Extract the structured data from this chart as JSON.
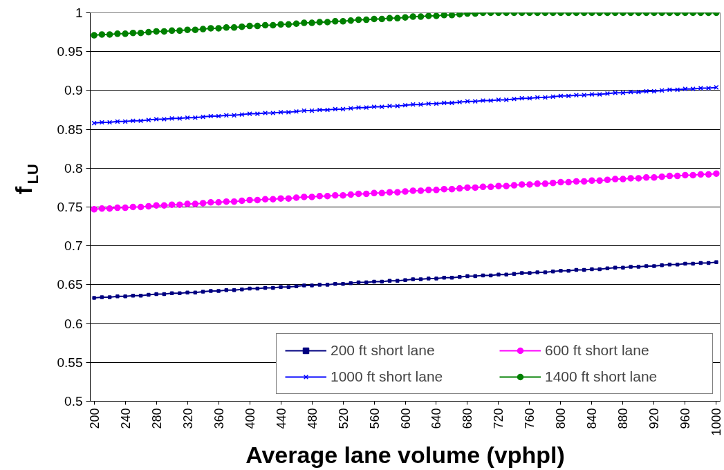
{
  "chart_data": {
    "type": "line",
    "xlabel": "Average lane volume (vphpl)",
    "ylabel": "f$_{LU}$",
    "categories": [
      "200",
      null,
      null,
      null,
      "240",
      null,
      null,
      null,
      "280",
      null,
      null,
      null,
      "320",
      null,
      null,
      null,
      "360",
      null,
      null,
      null,
      "400",
      null,
      null,
      null,
      "440",
      null,
      null,
      null,
      "480",
      null,
      null,
      null,
      "520",
      null,
      null,
      null,
      "560",
      null,
      null,
      null,
      "600",
      null,
      null,
      null,
      "640",
      null,
      null,
      null,
      "680",
      null,
      null,
      null,
      "720",
      null,
      null,
      null,
      "760",
      null,
      null,
      null,
      "800",
      null,
      null,
      null,
      "840",
      null,
      null,
      null,
      "880",
      null,
      null,
      null,
      "920",
      null,
      null,
      null,
      "960",
      null,
      null,
      null,
      "1000"
    ],
    "ylim": [
      0.5,
      1
    ],
    "yticks": [
      0.5,
      0.55,
      0.6,
      0.65,
      0.7,
      0.75,
      0.8,
      0.85,
      0.9,
      0.95,
      1
    ],
    "grid": "y",
    "legend": "bottom right",
    "series": [
      {
        "name": "200 ft short lane",
        "color": "#000080",
        "marker": "square",
        "values": [
          0.633,
          0.634,
          0.634,
          0.635,
          0.635,
          0.636,
          0.636,
          0.637,
          0.638,
          0.638,
          0.639,
          0.639,
          0.64,
          0.64,
          0.641,
          0.642,
          0.642,
          0.643,
          0.643,
          0.644,
          0.645,
          0.645,
          0.646,
          0.646,
          0.647,
          0.647,
          0.648,
          0.649,
          0.649,
          0.65,
          0.65,
          0.651,
          0.651,
          0.652,
          0.653,
          0.653,
          0.654,
          0.654,
          0.655,
          0.655,
          0.656,
          0.657,
          0.657,
          0.658,
          0.658,
          0.659,
          0.659,
          0.66,
          0.661,
          0.661,
          0.662,
          0.662,
          0.663,
          0.663,
          0.664,
          0.665,
          0.665,
          0.666,
          0.666,
          0.667,
          0.668,
          0.668,
          0.669,
          0.669,
          0.67,
          0.67,
          0.671,
          0.672,
          0.672,
          0.673,
          0.673,
          0.674,
          0.674,
          0.675,
          0.676,
          0.676,
          0.677,
          0.677,
          0.678,
          0.678,
          0.679
        ]
      },
      {
        "name": "600 ft short lane",
        "color": "#ff00ff",
        "marker": "circle",
        "values": [
          0.747,
          0.748,
          0.748,
          0.749,
          0.749,
          0.75,
          0.75,
          0.751,
          0.752,
          0.752,
          0.753,
          0.753,
          0.754,
          0.754,
          0.755,
          0.756,
          0.756,
          0.757,
          0.757,
          0.758,
          0.759,
          0.759,
          0.76,
          0.76,
          0.761,
          0.761,
          0.762,
          0.763,
          0.763,
          0.764,
          0.764,
          0.765,
          0.765,
          0.766,
          0.767,
          0.767,
          0.768,
          0.768,
          0.769,
          0.769,
          0.77,
          0.771,
          0.771,
          0.772,
          0.772,
          0.773,
          0.773,
          0.774,
          0.775,
          0.775,
          0.776,
          0.776,
          0.777,
          0.777,
          0.778,
          0.779,
          0.779,
          0.78,
          0.78,
          0.781,
          0.782,
          0.782,
          0.783,
          0.783,
          0.784,
          0.784,
          0.785,
          0.786,
          0.786,
          0.787,
          0.787,
          0.788,
          0.788,
          0.789,
          0.79,
          0.79,
          0.791,
          0.791,
          0.792,
          0.792,
          0.793
        ]
      },
      {
        "name": "1000 ft short lane",
        "color": "#0000ff",
        "marker": "cross",
        "values": [
          0.858,
          0.859,
          0.859,
          0.86,
          0.86,
          0.861,
          0.861,
          0.862,
          0.863,
          0.863,
          0.864,
          0.864,
          0.865,
          0.865,
          0.866,
          0.867,
          0.867,
          0.868,
          0.868,
          0.869,
          0.87,
          0.87,
          0.871,
          0.871,
          0.872,
          0.872,
          0.873,
          0.874,
          0.874,
          0.875,
          0.875,
          0.876,
          0.876,
          0.877,
          0.878,
          0.878,
          0.879,
          0.879,
          0.88,
          0.88,
          0.881,
          0.882,
          0.882,
          0.883,
          0.883,
          0.884,
          0.884,
          0.885,
          0.886,
          0.886,
          0.887,
          0.887,
          0.888,
          0.888,
          0.889,
          0.89,
          0.89,
          0.891,
          0.891,
          0.892,
          0.893,
          0.893,
          0.894,
          0.894,
          0.895,
          0.895,
          0.896,
          0.897,
          0.897,
          0.898,
          0.898,
          0.899,
          0.899,
          0.9,
          0.901,
          0.901,
          0.902,
          0.902,
          0.903,
          0.903,
          0.904
        ]
      },
      {
        "name": "1400 ft short lane",
        "color": "#008000",
        "marker": "circle",
        "values": [
          0.971,
          0.972,
          0.972,
          0.973,
          0.973,
          0.974,
          0.974,
          0.975,
          0.976,
          0.976,
          0.977,
          0.977,
          0.978,
          0.978,
          0.979,
          0.98,
          0.98,
          0.981,
          0.981,
          0.982,
          0.983,
          0.983,
          0.984,
          0.984,
          0.985,
          0.985,
          0.986,
          0.987,
          0.987,
          0.988,
          0.988,
          0.989,
          0.989,
          0.99,
          0.991,
          0.991,
          0.992,
          0.992,
          0.993,
          0.993,
          0.994,
          0.995,
          0.995,
          0.996,
          0.996,
          0.997,
          0.997,
          0.998,
          0.999,
          0.999,
          1,
          1,
          1,
          1,
          1,
          1,
          1,
          1,
          1,
          1,
          1,
          1,
          1,
          1,
          1,
          1,
          1,
          1,
          1,
          1,
          1,
          1,
          1,
          1,
          1,
          1,
          1,
          1,
          1,
          1,
          1
        ]
      }
    ]
  }
}
